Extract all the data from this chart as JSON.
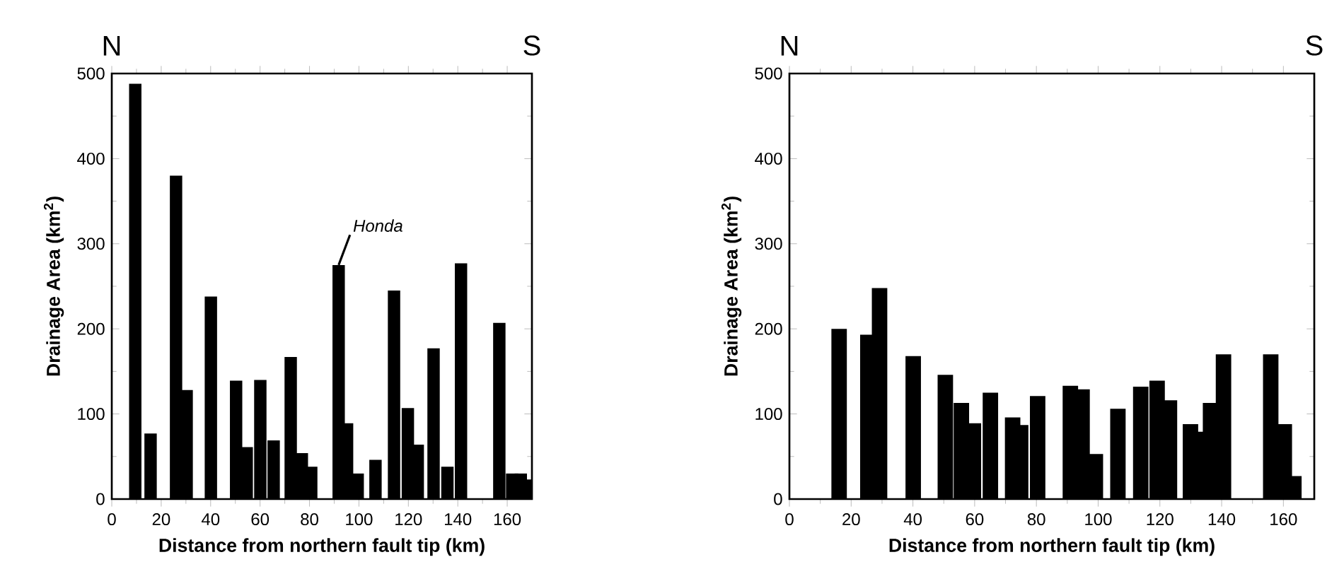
{
  "chart_data": [
    {
      "type": "bar",
      "xlabel": "Distance from northern fault tip (km)",
      "ylabel": "Drainage Area (km$^{2}$)",
      "color": "#000000",
      "x": [
        9.5,
        15.7,
        26.0,
        30.3,
        40.1,
        50.3,
        54.6,
        60.1,
        65.5,
        72.4,
        76.9,
        80.7,
        91.8,
        95.2,
        99.5,
        106.7,
        114.2,
        119.8,
        123.8,
        130.2,
        135.8,
        141.3,
        156.8,
        162,
        165.5,
        167.5
      ],
      "values": [
        488,
        77,
        380,
        128,
        238,
        139,
        61,
        140,
        69,
        167,
        54,
        38,
        275,
        89,
        30,
        46,
        245,
        107,
        64,
        177,
        38,
        277,
        207,
        30,
        30,
        23
      ],
      "xlim": [
        0,
        170
      ],
      "ylim": [
        0,
        500
      ],
      "xticks": [
        0,
        20,
        40,
        60,
        80,
        100,
        120,
        140,
        160
      ],
      "yticks": [
        0,
        100,
        200,
        300,
        400,
        500
      ],
      "annotations": [
        "N",
        "S",
        {
          "text": "Honda",
          "x": 91.8,
          "y": 275
        }
      ]
    },
    {
      "type": "bar",
      "xlabel": "Distance from northern fault tip (km)",
      "ylabel": "Drainage Area (km$^{2}$)",
      "color": "#000000",
      "x": [
        16.1,
        25.4,
        29.2,
        40.1,
        50.5,
        55.7,
        59.6,
        65.1,
        72.3,
        74.9,
        80.4,
        91.0,
        94.8,
        99.1,
        106.4,
        113.8,
        119.1,
        123.1,
        129.9,
        132.3,
        136.4,
        140.6,
        155.9,
        160.3,
        163.4
      ],
      "values": [
        200,
        193,
        248,
        168,
        146,
        113,
        89,
        125,
        96,
        87,
        121,
        133,
        129,
        53,
        106,
        132,
        139,
        116,
        88,
        79,
        113,
        170,
        170,
        88,
        27
      ],
      "xlim": [
        0,
        170
      ],
      "ylim": [
        0,
        500
      ],
      "xticks": [
        0,
        20,
        40,
        60,
        80,
        100,
        120,
        140,
        160
      ],
      "yticks": [
        0,
        100,
        200,
        300,
        400,
        500
      ],
      "annotations": [
        "N",
        "S"
      ]
    }
  ]
}
